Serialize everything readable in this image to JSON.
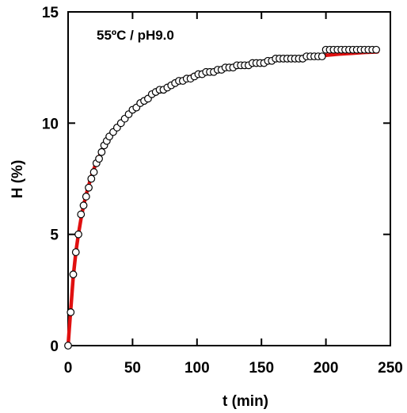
{
  "chart_data": {
    "type": "scatter",
    "annotation": "55ºC / pH9.0",
    "xlabel": "t (min)",
    "ylabel": "H (%)",
    "xlim": [
      0,
      250
    ],
    "ylim": [
      0,
      15
    ],
    "xticks": [
      "0",
      "50",
      "100",
      "150",
      "200",
      "250"
    ],
    "yticks": [
      "0",
      "5",
      "10",
      "15"
    ],
    "grid": false,
    "series": [
      {
        "kind": "markers",
        "marker": "open-circle",
        "x": [
          0,
          2,
          4,
          6,
          8,
          10,
          12,
          14,
          16,
          18,
          20,
          22,
          24,
          26,
          28,
          30,
          32,
          35,
          38,
          41,
          44,
          47,
          50,
          53,
          56,
          59,
          62,
          65,
          68,
          71,
          74,
          77,
          80,
          83,
          86,
          89,
          92,
          95,
          98,
          101,
          104,
          107,
          110,
          113,
          116,
          119,
          122,
          125,
          128,
          131,
          134,
          137,
          140,
          143,
          146,
          149,
          152,
          155,
          158,
          161,
          164,
          167,
          170,
          173,
          176,
          179,
          182,
          185,
          188,
          191,
          194,
          197,
          200,
          203,
          206,
          209,
          212,
          215,
          218,
          221,
          224,
          227,
          230,
          233,
          236,
          239
        ],
        "y": [
          0,
          1.5,
          3.2,
          4.2,
          5.0,
          5.9,
          6.3,
          6.7,
          7.1,
          7.5,
          7.8,
          8.2,
          8.4,
          8.7,
          9.0,
          9.2,
          9.4,
          9.6,
          9.8,
          10.0,
          10.2,
          10.4,
          10.6,
          10.7,
          10.9,
          11.0,
          11.1,
          11.3,
          11.4,
          11.5,
          11.5,
          11.6,
          11.7,
          11.8,
          11.9,
          11.9,
          12.0,
          12.0,
          12.1,
          12.2,
          12.2,
          12.3,
          12.3,
          12.3,
          12.4,
          12.4,
          12.5,
          12.5,
          12.5,
          12.6,
          12.6,
          12.6,
          12.6,
          12.7,
          12.7,
          12.7,
          12.7,
          12.8,
          12.8,
          12.9,
          12.9,
          12.9,
          12.9,
          12.9,
          12.9,
          12.9,
          12.9,
          13.0,
          13.0,
          13.0,
          13.0,
          13.0,
          13.3,
          13.3,
          13.3,
          13.3,
          13.3,
          13.3,
          13.3,
          13.3,
          13.3,
          13.3,
          13.3,
          13.3,
          13.3,
          13.3
        ]
      },
      {
        "kind": "fit-line",
        "color": "#e01010",
        "x": [
          0,
          1,
          2,
          4,
          6,
          8,
          10,
          12,
          15,
          18,
          21,
          25,
          30,
          35,
          40,
          45,
          50,
          55,
          60,
          65,
          70,
          80,
          90,
          100,
          110,
          120,
          130,
          140,
          150,
          160,
          170,
          180,
          190,
          200,
          210,
          220,
          230,
          240
        ],
        "y": [
          0,
          0.8,
          1.6,
          3.1,
          4.2,
          5.0,
          5.7,
          6.3,
          7.0,
          7.6,
          8.1,
          8.6,
          9.2,
          9.6,
          10.0,
          10.3,
          10.6,
          10.85,
          11.1,
          11.3,
          11.45,
          11.75,
          12.0,
          12.2,
          12.35,
          12.45,
          12.55,
          12.65,
          12.75,
          12.82,
          12.9,
          12.95,
          13.0,
          13.05,
          13.1,
          13.14,
          13.18,
          13.2
        ]
      }
    ]
  }
}
